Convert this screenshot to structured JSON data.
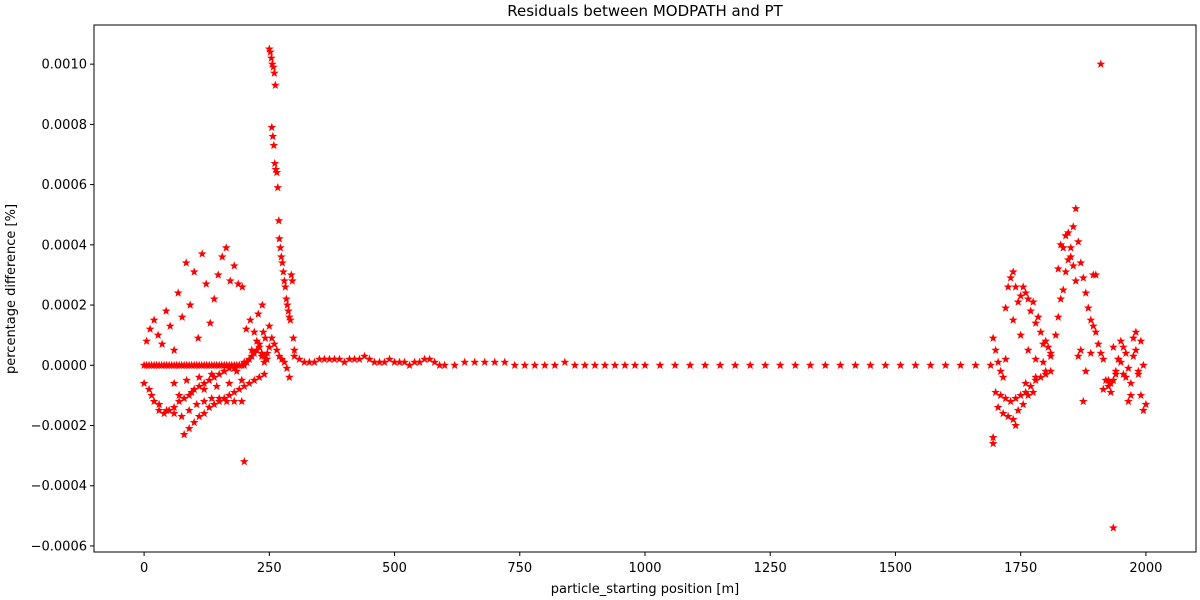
{
  "chart_data": {
    "type": "scatter",
    "title": "Residuals between MODPATH and PT",
    "xlabel": "particle_starting position [m]",
    "ylabel": "percentage difference [%]",
    "xlim": [
      -100,
      2100
    ],
    "ylim": [
      -0.00062,
      0.00113
    ],
    "xticks": [
      0,
      250,
      500,
      750,
      1000,
      1250,
      1500,
      1750,
      2000
    ],
    "xtick_labels": [
      "0",
      "250",
      "500",
      "750",
      "1000",
      "1250",
      "1500",
      "1750",
      "2000"
    ],
    "yticks": [
      -0.0006,
      -0.0004,
      -0.0002,
      0.0,
      0.0002,
      0.0004,
      0.0006,
      0.0008,
      0.001
    ],
    "ytick_labels": [
      "−0.0006",
      "−0.0004",
      "−0.0002",
      "0.0000",
      "0.0002",
      "0.0004",
      "0.0006",
      "0.0008",
      "0.0010"
    ],
    "grid": false,
    "marker": "star",
    "marker_color": "#ff0000",
    "series": [
      {
        "name": "",
        "x": [
          0,
          5,
          10,
          15,
          20,
          25,
          30,
          35,
          40,
          45,
          50,
          55,
          60,
          65,
          70,
          75,
          80,
          85,
          90,
          95,
          100,
          105,
          110,
          115,
          120,
          125,
          130,
          135,
          140,
          145,
          150,
          155,
          160,
          165,
          170,
          175,
          180,
          185,
          190,
          195,
          200,
          205,
          210,
          215,
          220,
          225,
          230,
          235,
          240,
          245,
          5,
          12,
          20,
          28,
          36,
          44,
          52,
          60,
          68,
          76,
          84,
          92,
          100,
          108,
          116,
          124,
          132,
          140,
          148,
          156,
          164,
          172,
          180,
          188,
          196,
          204,
          212,
          220,
          228,
          236,
          10,
          20,
          30,
          40,
          50,
          60,
          70,
          80,
          90,
          100,
          110,
          120,
          130,
          140,
          150,
          160,
          170,
          180,
          190,
          200,
          80,
          90,
          100,
          110,
          120,
          130,
          140,
          150,
          160,
          170,
          180,
          190,
          200,
          210,
          220,
          230,
          240,
          0,
          15,
          30,
          45,
          60,
          75,
          90,
          105,
          120,
          135,
          150,
          165,
          180,
          195,
          60,
          85,
          110,
          135,
          160,
          185,
          70,
          95,
          120,
          145,
          170,
          195,
          215,
          225,
          200,
          250,
          252,
          254,
          256,
          258,
          260,
          262,
          255,
          257,
          259,
          261,
          263,
          265,
          267,
          269,
          270,
          272,
          274,
          276,
          278,
          280,
          282,
          284,
          286,
          288,
          290,
          292,
          294,
          296,
          298,
          300,
          255,
          260,
          265,
          270,
          275,
          280,
          285,
          290,
          230,
          235,
          240,
          245,
          250,
          238,
          242,
          246,
          250,
          300,
          310,
          320,
          330,
          340,
          350,
          360,
          370,
          380,
          390,
          400,
          410,
          420,
          430,
          440,
          450,
          460,
          470,
          480,
          490,
          500,
          510,
          520,
          530,
          540,
          550,
          560,
          570,
          580,
          590,
          600,
          620,
          640,
          660,
          680,
          700,
          720,
          740,
          760,
          780,
          800,
          820,
          840,
          860,
          880,
          900,
          920,
          940,
          960,
          980,
          1000,
          1030,
          1060,
          1090,
          1120,
          1150,
          1180,
          1210,
          1240,
          1270,
          1300,
          1330,
          1360,
          1390,
          1420,
          1450,
          1480,
          1510,
          1540,
          1570,
          1600,
          1630,
          1660,
          1690,
          1695,
          1700,
          1705,
          1710,
          1715,
          1720,
          1725,
          1730,
          1735,
          1740,
          1745,
          1750,
          1755,
          1760,
          1765,
          1770,
          1775,
          1780,
          1785,
          1790,
          1795,
          1800,
          1805,
          1810,
          1700,
          1710,
          1720,
          1730,
          1740,
          1750,
          1760,
          1770,
          1780,
          1790,
          1800,
          1810,
          1695,
          1695,
          1705,
          1715,
          1725,
          1735,
          1745,
          1755,
          1765,
          1775,
          1720,
          1735,
          1750,
          1765,
          1780,
          1795,
          1810,
          1740,
          1760,
          1780,
          1800,
          1820,
          1825,
          1830,
          1835,
          1840,
          1845,
          1850,
          1855,
          1860,
          1865,
          1870,
          1875,
          1880,
          1885,
          1890,
          1895,
          1900,
          1845,
          1850,
          1855,
          1860,
          1840,
          1835,
          1830,
          1825,
          1870,
          1880,
          1890,
          1895,
          1900,
          1905,
          1910,
          1915,
          1920,
          1925,
          1930,
          1935,
          1940,
          1945,
          1950,
          1955,
          1960,
          1965,
          1970,
          1975,
          1980,
          1985,
          1990,
          1995,
          2000,
          1930,
          1940,
          1950,
          1960,
          1970,
          1980,
          1990,
          1915,
          1925,
          1935,
          1945,
          1955,
          1965,
          1975,
          1985,
          1995,
          1865,
          1875,
          1910,
          1935
        ],
        "y": [
          0,
          0,
          0,
          0,
          0,
          0,
          0,
          0,
          0,
          0,
          0,
          0,
          0,
          0,
          0,
          0,
          0,
          0,
          0,
          0,
          0,
          0,
          0,
          0,
          0,
          0,
          0,
          0,
          0,
          0,
          0,
          0,
          0,
          0,
          0,
          0,
          0,
          0,
          0,
          0,
          0,
          1e-05,
          2e-05,
          3e-05,
          4e-05,
          5e-05,
          6e-05,
          4e-05,
          3e-05,
          2e-05,
          8e-05,
          0.00012,
          0.00015,
          0.0001,
          7e-05,
          0.00018,
          0.00013,
          5e-05,
          0.00024,
          0.00016,
          0.00034,
          0.0002,
          0.00031,
          9e-05,
          0.00037,
          0.00027,
          0.00014,
          0.00022,
          0.0003,
          0.00036,
          0.00039,
          0.00028,
          0.00033,
          0.00027,
          0.00026,
          0.00012,
          0.00015,
          0.00011,
          0.00017,
          0.0002,
          -8e-05,
          -0.00012,
          -0.00015,
          -0.00016,
          -0.00015,
          -0.00014,
          -0.00012,
          -0.00011,
          -0.0001,
          -8e-05,
          -7e-05,
          -6e-05,
          -5e-05,
          -4e-05,
          -3e-05,
          -2e-05,
          -1e-05,
          -1e-05,
          0.0,
          1e-05,
          -0.00023,
          -0.00021,
          -0.00019,
          -0.00017,
          -0.00016,
          -0.00014,
          -0.00013,
          -0.00012,
          -0.00011,
          -0.0001,
          -9e-05,
          -8e-05,
          -7e-05,
          -6e-05,
          -5e-05,
          -4e-05,
          -3e-05,
          -6e-05,
          -0.0001,
          -0.00013,
          -0.00015,
          -0.00016,
          -0.00017,
          -0.00015,
          -0.00013,
          -0.00012,
          -0.00011,
          -0.00011,
          -0.00012,
          -0.00012,
          -0.00012,
          -6e-05,
          -5e-05,
          -4e-05,
          -3e-05,
          -2e-05,
          -2e-05,
          -0.0001,
          -9e-05,
          -8e-05,
          -7e-05,
          -6e-05,
          -5e-05,
          5e-05,
          8e-05,
          -0.00032,
          0.00105,
          0.00104,
          0.00102,
          0.001,
          0.00099,
          0.00097,
          0.00093,
          0.00079,
          0.00076,
          0.00073,
          0.00067,
          0.00065,
          0.00064,
          0.00059,
          0.00048,
          0.00042,
          0.00039,
          0.00036,
          0.00034,
          0.00031,
          0.00028,
          0.00026,
          0.00022,
          0.0002,
          0.00018,
          0.00016,
          0.00015,
          0.0003,
          0.00028,
          9e-05,
          5e-05,
          9e-05,
          7e-05,
          5e-05,
          3e-05,
          2e-05,
          1e-05,
          -1e-05,
          -4e-05,
          7e-05,
          3e-05,
          1e-05,
          2e-05,
          6e-05,
          0.00011,
          9e-05,
          4e-05,
          0.00013,
          3e-05,
          2e-05,
          1e-05,
          1e-05,
          1e-05,
          2e-05,
          2e-05,
          2e-05,
          2e-05,
          2e-05,
          1e-05,
          2e-05,
          2e-05,
          2e-05,
          3e-05,
          2e-05,
          1e-05,
          1e-05,
          1e-05,
          2e-05,
          1e-05,
          1e-05,
          1e-05,
          0.0,
          1e-05,
          1e-05,
          2e-05,
          2e-05,
          1e-05,
          0.0,
          0.0,
          0.0,
          1e-05,
          1e-05,
          1e-05,
          1e-05,
          1e-05,
          0.0,
          0.0,
          0.0,
          0.0,
          0.0,
          1e-05,
          0.0,
          0.0,
          0.0,
          0.0,
          0.0,
          0.0,
          0.0,
          0.0,
          0.0,
          0.0,
          0.0,
          0.0,
          0.0,
          0.0,
          0.0,
          0.0,
          0.0,
          0.0,
          0.0,
          0.0,
          0.0,
          0.0,
          0.0,
          0.0,
          0.0,
          0.0,
          0.0,
          0.0,
          0.0,
          0.0,
          0.0,
          9e-05,
          5e-05,
          1e-05,
          -2e-05,
          -4e-05,
          2e-05,
          0.00026,
          0.00029,
          0.00031,
          0.00026,
          0.00021,
          0.00023,
          0.00026,
          0.00024,
          0.00022,
          0.00018,
          0.00021,
          0.00014,
          0.00016,
          0.00011,
          7e-05,
          8e-05,
          6e-05,
          4e-05,
          -9e-05,
          -0.0001,
          -0.00011,
          -0.00012,
          -0.00011,
          -0.0001,
          -9e-05,
          -7e-05,
          -5e-05,
          -4e-05,
          -3e-05,
          -2e-05,
          -0.00024,
          -0.00026,
          -0.00014,
          -0.00016,
          -0.00017,
          -0.00018,
          -0.00015,
          -0.00013,
          -0.0001,
          -9e-05,
          0.00019,
          0.00015,
          0.0001,
          5e-05,
          2e-05,
          1e-05,
          3e-05,
          -0.0002,
          -6e-05,
          -4e-05,
          -2e-05,
          0.0001,
          0.00016,
          0.00022,
          0.00025,
          0.00031,
          0.00035,
          0.00039,
          0.00046,
          0.00052,
          0.00041,
          0.00034,
          0.00029,
          0.00024,
          0.00019,
          0.00015,
          0.00013,
          0.00011,
          0.00044,
          0.00036,
          0.00033,
          0.00028,
          0.00043,
          0.00039,
          0.0004,
          0.00032,
          5e-05,
          -2e-05,
          4e-05,
          0.0003,
          0.0003,
          7e-05,
          4e-05,
          2e-05,
          -5e-05,
          -7e-05,
          -9e-05,
          -5e-05,
          -3e-05,
          2e-05,
          8e-05,
          6e-05,
          -4e-05,
          -0.00012,
          -6e-05,
          3e-05,
          5e-05,
          -3e-05,
          -0.0001,
          -0.00015,
          -0.00013,
          -6e-05,
          -2e-05,
          1e-05,
          4e-05,
          -0.0001,
          0.00011,
          8e-05,
          -8e-05,
          -5e-05,
          6e-05,
          2e-05,
          -3e-05,
          -1e-05,
          9e-05,
          -2e-05,
          0.0,
          3e-05,
          -0.00012,
          0.001,
          -0.00054
        ]
      }
    ]
  }
}
